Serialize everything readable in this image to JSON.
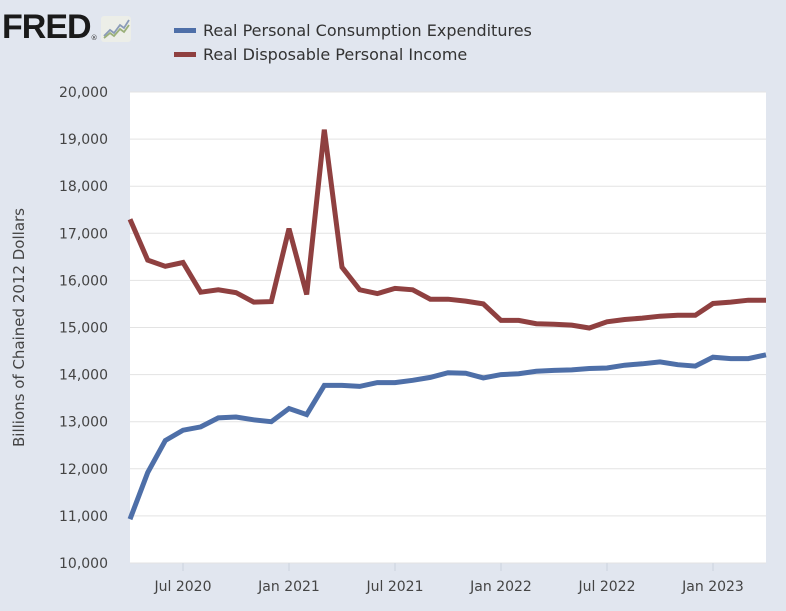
{
  "brand": {
    "name": "FRED",
    "registered": "®",
    "icon": "chart-line-icon"
  },
  "chart_data": {
    "type": "line",
    "title": "",
    "xlabel": "",
    "ylabel": "Billions of Chained 2012 Dollars",
    "ylim": [
      10000,
      20000
    ],
    "yticks": [
      10000,
      11000,
      12000,
      13000,
      14000,
      15000,
      16000,
      17000,
      18000,
      19000,
      20000
    ],
    "ytick_labels": [
      "10,000",
      "11,000",
      "12,000",
      "13,000",
      "14,000",
      "15,000",
      "16,000",
      "17,000",
      "18,000",
      "19,000",
      "20,000"
    ],
    "xticks": [
      {
        "index": 3,
        "label": "Jul 2020"
      },
      {
        "index": 9,
        "label": "Jan 2021"
      },
      {
        "index": 15,
        "label": "Jul 2021"
      },
      {
        "index": 21,
        "label": "Jan 2022"
      },
      {
        "index": 27,
        "label": "Jul 2022"
      },
      {
        "index": 33,
        "label": "Jan 2023"
      }
    ],
    "grid": true,
    "legend_position": "top",
    "x": [
      "2020-04",
      "2020-05",
      "2020-06",
      "2020-07",
      "2020-08",
      "2020-09",
      "2020-10",
      "2020-11",
      "2020-12",
      "2021-01",
      "2021-02",
      "2021-03",
      "2021-04",
      "2021-05",
      "2021-06",
      "2021-07",
      "2021-08",
      "2021-09",
      "2021-10",
      "2021-11",
      "2021-12",
      "2022-01",
      "2022-02",
      "2022-03",
      "2022-04",
      "2022-05",
      "2022-06",
      "2022-07",
      "2022-08",
      "2022-09",
      "2022-10",
      "2022-11",
      "2022-12",
      "2023-01",
      "2023-02",
      "2023-03",
      "2023-04"
    ],
    "series": [
      {
        "name": "Real Personal Consumption Expenditures",
        "color": "#4e6fa8",
        "values": [
          10930,
          11920,
          12600,
          12820,
          12890,
          13080,
          13100,
          13040,
          13000,
          13280,
          13150,
          13770,
          13770,
          13750,
          13830,
          13830,
          13880,
          13940,
          14040,
          14030,
          13930,
          14000,
          14020,
          14070,
          14090,
          14100,
          14130,
          14140,
          14200,
          14230,
          14270,
          14210,
          14180,
          14370,
          14340,
          14340,
          14420
        ]
      },
      {
        "name": "Real Disposable Personal Income",
        "color": "#8f4040",
        "values": [
          17300,
          16430,
          16300,
          16380,
          15750,
          15800,
          15740,
          15540,
          15550,
          17100,
          15700,
          19200,
          16280,
          15800,
          15720,
          15830,
          15800,
          15600,
          15600,
          15560,
          15500,
          15150,
          15150,
          15080,
          15070,
          15050,
          14990,
          15120,
          15170,
          15200,
          15240,
          15260,
          15260,
          15510,
          15540,
          15580,
          15580
        ]
      }
    ]
  }
}
